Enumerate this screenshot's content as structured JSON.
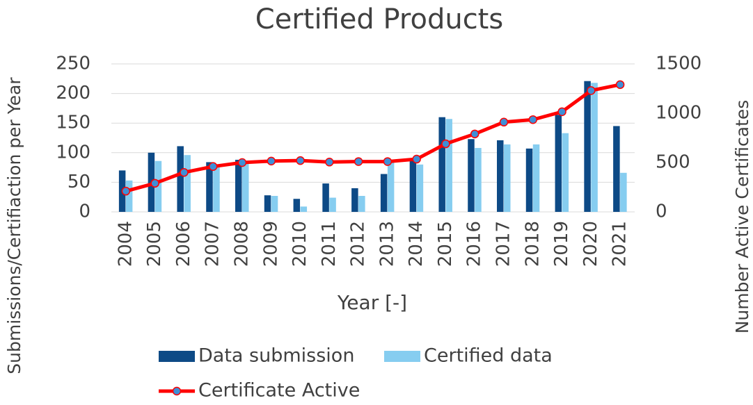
{
  "chart_data": {
    "type": "bar_line",
    "title": "Certified Products",
    "x_label": "Year [-]",
    "y_label": "Submissions/Certifiaction per Year",
    "y2_label": "Number Active Certificates",
    "categories": [
      "2004",
      "2005",
      "2006",
      "2007",
      "2008",
      "2009",
      "2010",
      "2011",
      "2012",
      "2013",
      "2014",
      "2015",
      "2016",
      "2017",
      "2018",
      "2019",
      "2020",
      "2021"
    ],
    "series": [
      {
        "name": "Data submission",
        "type": "bar",
        "color": "#0d4a86",
        "values": [
          70,
          100,
          111,
          84,
          88,
          28,
          22,
          48,
          40,
          64,
          88,
          160,
          123,
          121,
          107,
          164,
          221,
          145
        ]
      },
      {
        "name": "Certified data",
        "type": "bar",
        "color": "#86cdf0",
        "values": [
          53,
          86,
          96,
          80,
          85,
          27,
          9,
          24,
          27,
          85,
          80,
          157,
          108,
          114,
          114,
          133,
          218,
          66
        ]
      },
      {
        "name": "Certificate Active",
        "type": "line",
        "axis": "y2",
        "color": "#ff0000",
        "marker_color": "#3f8fd6",
        "values": [
          210,
          290,
          400,
          460,
          500,
          515,
          520,
          505,
          510,
          510,
          535,
          690,
          790,
          910,
          935,
          1015,
          1230,
          1290
        ]
      }
    ],
    "ylim": [
      0,
      250
    ],
    "yticks": [
      0,
      50,
      100,
      150,
      200,
      250
    ],
    "y2lim": [
      0,
      1500
    ],
    "y2ticks": [
      0,
      500,
      1000,
      1500
    ],
    "grid": true,
    "legend": "bottom"
  }
}
